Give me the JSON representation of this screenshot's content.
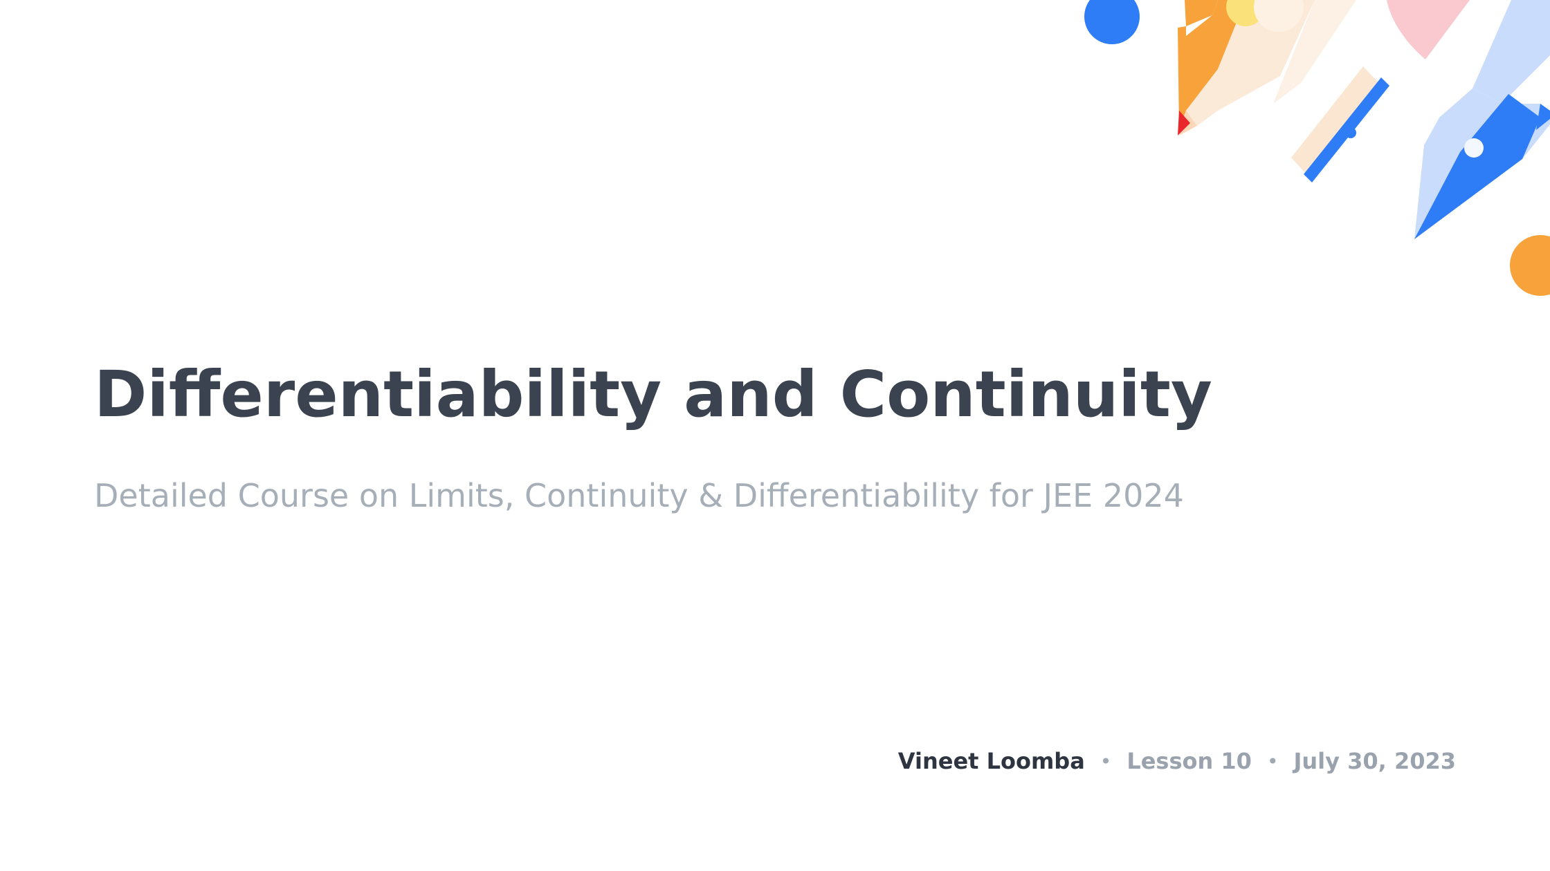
{
  "slide": {
    "title": "Differentiability and Continuity",
    "subtitle": "Detailed Course on Limits, Continuity & Differentiability for JEE 2024",
    "author": "Vineet Loomba",
    "separator": "•",
    "lesson": "Lesson 10",
    "date": "July 30, 2023"
  },
  "colors": {
    "title": "#3b4350",
    "subtitle": "#a6aeb8",
    "author": "#2f3540",
    "meta": "#9aa3ad",
    "blue": "#2f7df6",
    "orange": "#f7a23a",
    "light_blue": "#c9dcfb",
    "pink": "#f9c9cf",
    "peach": "#fbe6d2",
    "red": "#e8262b",
    "yellow": "#fbe17a"
  },
  "icons": {
    "decoration": "stationery-illustration"
  }
}
